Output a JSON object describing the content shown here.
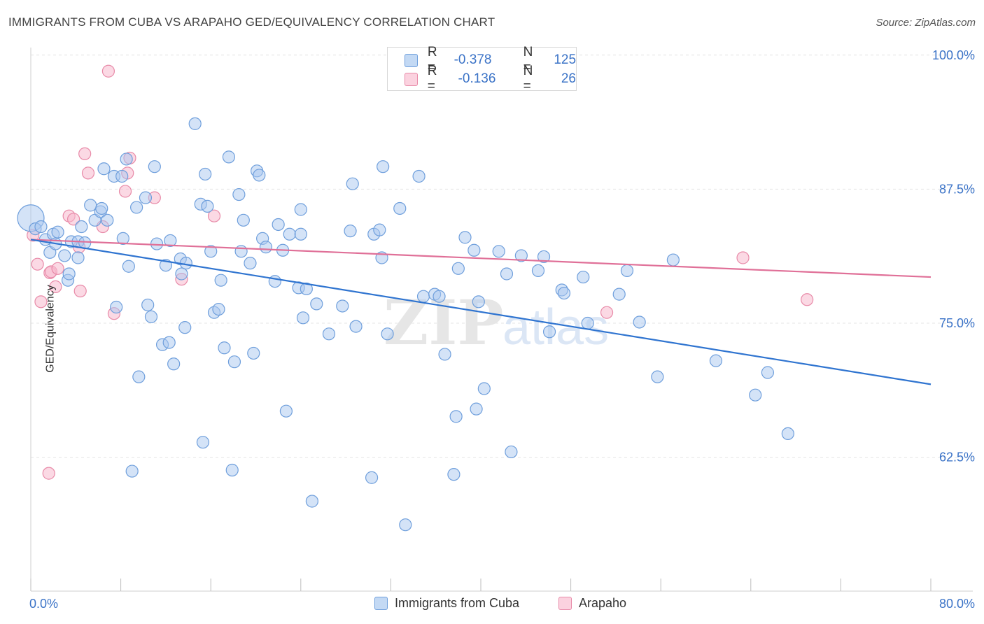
{
  "header": {
    "title": "IMMIGRANTS FROM CUBA VS ARAPAHO GED/EQUIVALENCY CORRELATION CHART",
    "source": "Source: ZipAtlas.com"
  },
  "stats": {
    "cuba": {
      "r_label": "R =",
      "r": "-0.378",
      "n_label": "N =",
      "n": "125"
    },
    "arapaho": {
      "r_label": "R =",
      "r": "-0.136",
      "n_label": "N =",
      "n": "26"
    }
  },
  "legend": {
    "cuba": "Immigrants from Cuba",
    "arapaho": "Arapaho"
  },
  "watermark": {
    "zip": "ZIP",
    "atlas": "atlas"
  },
  "colors": {
    "cuba_fill": "#a9c8f0",
    "cuba_stroke": "#6f9fdc",
    "cuba_line": "#2f74d0",
    "arapaho_fill": "#f7b9cd",
    "arapaho_stroke": "#e88aa8",
    "arapaho_line": "#e07098",
    "tick_label": "#3b73c7",
    "grid": "#e4e4e4"
  },
  "chart_data": {
    "type": "scatter",
    "title": "IMMIGRANTS FROM CUBA VS ARAPAHO GED/EQUIVALENCY CORRELATION CHART",
    "xlabel": "",
    "ylabel": "GED/Equivalency",
    "xlim": [
      0,
      80
    ],
    "ylim": [
      50,
      102
    ],
    "x_tick_labels": [
      "0.0%",
      "80.0%"
    ],
    "y_ticks": [
      62.5,
      75.0,
      87.5,
      100.0
    ],
    "y_tick_labels": [
      "62.5%",
      "75.0%",
      "87.5%",
      "100.0%"
    ],
    "grid": true,
    "legend_position": "bottom",
    "series": [
      {
        "name": "Immigrants from Cuba",
        "points": [
          [
            0.0,
            84.8
          ],
          [
            0.4,
            83.8
          ],
          [
            0.9,
            84.0
          ],
          [
            1.3,
            82.8
          ],
          [
            1.7,
            81.6
          ],
          [
            2.0,
            83.3
          ],
          [
            2.2,
            82.4
          ],
          [
            2.4,
            83.5
          ],
          [
            3.0,
            81.3
          ],
          [
            3.3,
            79.0
          ],
          [
            3.4,
            79.6
          ],
          [
            3.6,
            82.6
          ],
          [
            4.2,
            82.6
          ],
          [
            4.2,
            81.1
          ],
          [
            4.5,
            84.0
          ],
          [
            4.8,
            82.5
          ],
          [
            5.3,
            86.0
          ],
          [
            5.7,
            84.6
          ],
          [
            6.2,
            85.4
          ],
          [
            6.3,
            85.7
          ],
          [
            6.5,
            89.4
          ],
          [
            6.8,
            84.6
          ],
          [
            7.4,
            88.7
          ],
          [
            7.6,
            76.5
          ],
          [
            8.1,
            88.7
          ],
          [
            8.2,
            82.9
          ],
          [
            8.5,
            90.3
          ],
          [
            8.7,
            80.3
          ],
          [
            9.0,
            61.2
          ],
          [
            9.4,
            85.8
          ],
          [
            9.6,
            70.0
          ],
          [
            10.2,
            86.7
          ],
          [
            10.4,
            76.7
          ],
          [
            10.7,
            75.6
          ],
          [
            11.0,
            89.6
          ],
          [
            11.2,
            82.4
          ],
          [
            11.7,
            73.0
          ],
          [
            12.0,
            80.4
          ],
          [
            12.3,
            73.2
          ],
          [
            12.4,
            82.7
          ],
          [
            12.7,
            71.2
          ],
          [
            13.3,
            81.0
          ],
          [
            13.4,
            79.6
          ],
          [
            13.7,
            74.6
          ],
          [
            13.8,
            80.6
          ],
          [
            14.6,
            93.6
          ],
          [
            15.1,
            86.1
          ],
          [
            15.3,
            63.9
          ],
          [
            15.5,
            88.9
          ],
          [
            15.7,
            85.9
          ],
          [
            16.3,
            76.0
          ],
          [
            16.7,
            76.3
          ],
          [
            16.9,
            79.0
          ],
          [
            17.2,
            72.7
          ],
          [
            17.6,
            90.5
          ],
          [
            17.9,
            61.3
          ],
          [
            18.1,
            71.4
          ],
          [
            18.5,
            87.0
          ],
          [
            18.7,
            81.7
          ],
          [
            18.9,
            84.6
          ],
          [
            19.5,
            80.6
          ],
          [
            19.8,
            72.2
          ],
          [
            20.1,
            89.2
          ],
          [
            20.3,
            88.8
          ],
          [
            20.6,
            82.9
          ],
          [
            20.9,
            82.1
          ],
          [
            21.7,
            78.9
          ],
          [
            22.0,
            84.2
          ],
          [
            22.4,
            81.8
          ],
          [
            22.7,
            66.8
          ],
          [
            23.0,
            83.3
          ],
          [
            23.8,
            78.3
          ],
          [
            24.0,
            85.6
          ],
          [
            24.2,
            75.5
          ],
          [
            24.5,
            78.2
          ],
          [
            25.0,
            58.4
          ],
          [
            25.4,
            76.8
          ],
          [
            26.5,
            74.0
          ],
          [
            27.7,
            76.6
          ],
          [
            28.4,
            83.6
          ],
          [
            28.6,
            88.0
          ],
          [
            28.9,
            74.7
          ],
          [
            30.3,
            60.6
          ],
          [
            30.5,
            83.3
          ],
          [
            31.0,
            83.7
          ],
          [
            31.2,
            81.1
          ],
          [
            31.3,
            89.6
          ],
          [
            31.7,
            74.0
          ],
          [
            32.8,
            85.7
          ],
          [
            33.3,
            56.2
          ],
          [
            34.5,
            88.7
          ],
          [
            34.9,
            77.5
          ],
          [
            35.9,
            77.7
          ],
          [
            36.3,
            77.5
          ],
          [
            36.8,
            72.1
          ],
          [
            37.6,
            60.9
          ],
          [
            37.8,
            66.3
          ],
          [
            38.0,
            80.1
          ],
          [
            38.6,
            83.0
          ],
          [
            39.4,
            81.8
          ],
          [
            39.6,
            67.0
          ],
          [
            39.8,
            77.0
          ],
          [
            40.3,
            68.9
          ],
          [
            41.6,
            81.7
          ],
          [
            42.3,
            79.6
          ],
          [
            42.7,
            63.0
          ],
          [
            43.6,
            81.3
          ],
          [
            45.1,
            79.9
          ],
          [
            45.6,
            81.2
          ],
          [
            46.1,
            74.2
          ],
          [
            47.2,
            78.1
          ],
          [
            47.4,
            77.8
          ],
          [
            49.1,
            79.3
          ],
          [
            49.5,
            75.0
          ],
          [
            52.3,
            77.7
          ],
          [
            53.0,
            79.9
          ],
          [
            54.1,
            75.1
          ],
          [
            55.7,
            70.0
          ],
          [
            57.1,
            80.9
          ],
          [
            60.9,
            71.5
          ],
          [
            64.4,
            68.3
          ],
          [
            65.5,
            70.4
          ],
          [
            67.3,
            64.7
          ],
          [
            16.0,
            81.7
          ],
          [
            24.0,
            83.3
          ]
        ]
      },
      {
        "name": "Arapaho",
        "points": [
          [
            0.2,
            83.2
          ],
          [
            0.6,
            80.5
          ],
          [
            0.9,
            77.0
          ],
          [
            1.6,
            61.0
          ],
          [
            1.7,
            79.7
          ],
          [
            1.8,
            79.8
          ],
          [
            2.2,
            78.4
          ],
          [
            2.4,
            80.1
          ],
          [
            3.4,
            85.0
          ],
          [
            3.8,
            84.7
          ],
          [
            4.3,
            82.1
          ],
          [
            4.4,
            78.0
          ],
          [
            4.8,
            90.8
          ],
          [
            5.1,
            89.0
          ],
          [
            6.4,
            84.0
          ],
          [
            6.9,
            98.5
          ],
          [
            7.4,
            75.9
          ],
          [
            8.4,
            87.3
          ],
          [
            8.6,
            89.0
          ],
          [
            8.8,
            90.4
          ],
          [
            11.0,
            86.7
          ],
          [
            13.4,
            79.1
          ],
          [
            16.3,
            85.0
          ],
          [
            51.2,
            76.0
          ],
          [
            63.3,
            81.1
          ],
          [
            69.0,
            77.2
          ]
        ]
      }
    ],
    "trend_lines": [
      {
        "name": "Immigrants from Cuba",
        "x": [
          0,
          80
        ],
        "y": [
          82.8,
          69.3
        ]
      },
      {
        "name": "Arapaho",
        "x": [
          0,
          80
        ],
        "y": [
          82.8,
          79.3
        ]
      }
    ]
  }
}
